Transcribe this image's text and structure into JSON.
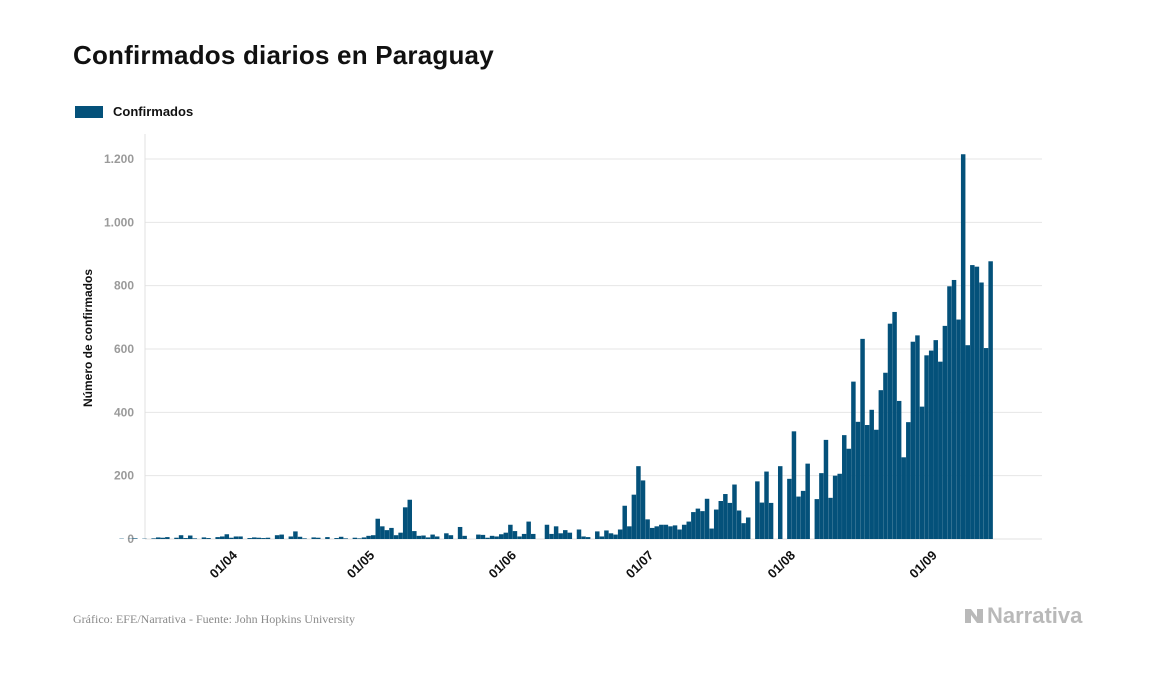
{
  "title": "Confirmados diarios en Paraguay",
  "legend": {
    "label": "Confirmados",
    "color": "#04517a"
  },
  "footer": {
    "source": "Gráfico: EFE/Narrativa - Fuente: John Hopkins University",
    "brand": "Narrativa"
  },
  "chart_data": {
    "type": "bar",
    "title": "Confirmados diarios en Paraguay",
    "xlabel": "",
    "ylabel": "Número de confirmados",
    "ylim": [
      0,
      1260
    ],
    "yticks": [
      0,
      200,
      400,
      600,
      800,
      1000,
      1200
    ],
    "ytick_labels": [
      "0",
      "200",
      "400",
      "600",
      "800",
      "1.000",
      "1.200"
    ],
    "x_start": "2020-03-07",
    "x_tick_labels": [
      {
        "label": "01/04",
        "date": "2020-04-01"
      },
      {
        "label": "01/05",
        "date": "2020-05-01"
      },
      {
        "label": "01/06",
        "date": "2020-06-01"
      },
      {
        "label": "01/07",
        "date": "2020-07-01"
      },
      {
        "label": "01/08",
        "date": "2020-08-01"
      },
      {
        "label": "01/09",
        "date": "2020-09-01"
      }
    ],
    "grid": true,
    "legend_position": "top-left",
    "series": [
      {
        "name": "Confirmados",
        "color": "#04517a",
        "values": [
          1,
          0,
          1,
          2,
          0,
          1,
          0,
          2,
          5,
          4,
          6,
          0,
          4,
          12,
          3,
          11,
          2,
          0,
          5,
          3,
          0,
          6,
          8,
          15,
          4,
          8,
          8,
          0,
          3,
          5,
          4,
          3,
          4,
          0,
          12,
          14,
          0,
          8,
          24,
          7,
          2,
          0,
          5,
          4,
          0,
          6,
          0,
          3,
          7,
          2,
          0,
          4,
          2,
          5,
          10,
          12,
          64,
          40,
          28,
          35,
          12,
          20,
          100,
          124,
          25,
          10,
          11,
          5,
          14,
          8,
          0,
          18,
          12,
          0,
          38,
          10,
          0,
          0,
          14,
          13,
          4,
          10,
          8,
          15,
          20,
          45,
          25,
          8,
          16,
          55,
          16,
          0,
          0,
          45,
          16,
          40,
          18,
          28,
          20,
          0,
          30,
          8,
          6,
          0,
          24,
          8,
          27,
          18,
          14,
          30,
          105,
          40,
          140,
          230,
          185,
          62,
          35,
          40,
          45,
          45,
          40,
          43,
          30,
          45,
          55,
          85,
          96,
          88,
          127,
          33,
          93,
          120,
          142,
          114,
          172,
          90,
          50,
          68,
          0,
          182,
          115,
          213,
          114,
          0,
          230,
          0,
          190,
          340,
          134,
          152,
          238,
          0,
          126,
          208,
          313,
          130,
          200,
          206,
          328,
          285,
          497,
          370,
          632,
          360,
          408,
          345,
          470,
          525,
          680,
          717,
          436,
          258,
          369,
          623,
          643,
          418,
          580,
          595,
          628,
          560,
          673,
          798,
          818,
          693,
          1215,
          612,
          865,
          860,
          810,
          603,
          877
        ]
      }
    ]
  }
}
